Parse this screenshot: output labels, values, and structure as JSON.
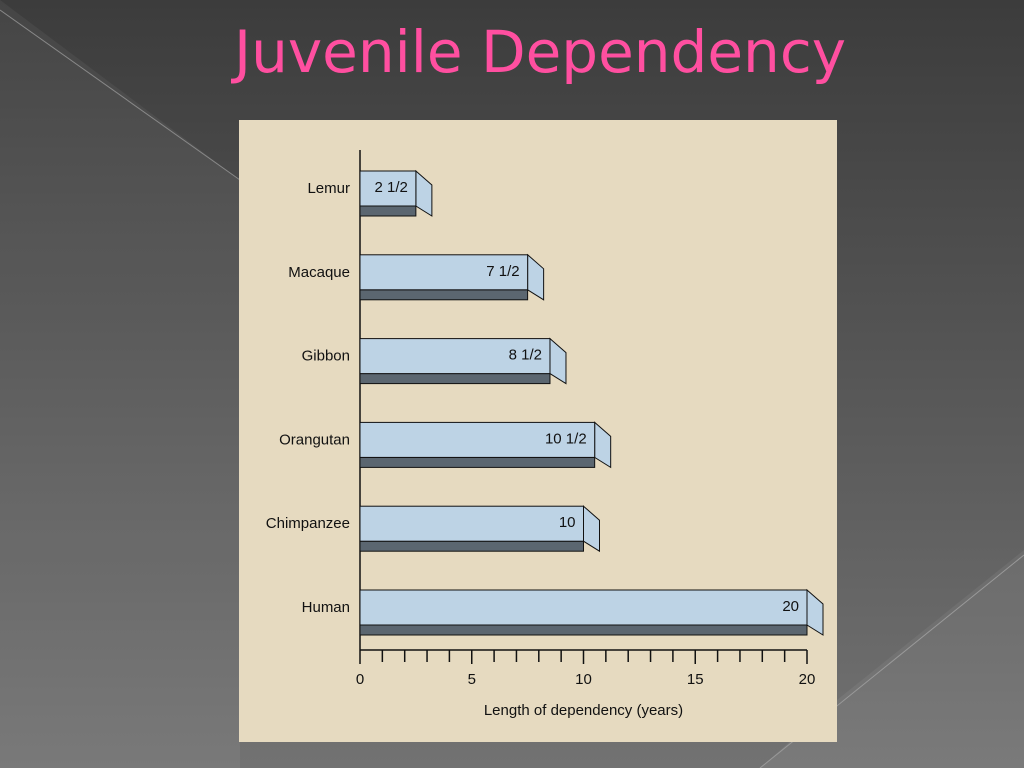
{
  "chart_data": {
    "type": "bar",
    "orientation": "horizontal",
    "title": "Juvenile Dependency",
    "categories": [
      "Lemur",
      "Macaque",
      "Gibbon",
      "Orangutan",
      "Chimpanzee",
      "Human"
    ],
    "values": [
      2.5,
      7.5,
      8.5,
      10.5,
      10,
      20
    ],
    "value_labels": [
      "2 1/2",
      "7 1/2",
      "8 1/2",
      "10 1/2",
      "10",
      "20"
    ],
    "color": "#bdd3e5",
    "xlabel": "Length of dependency (years)",
    "xlim": [
      0,
      20
    ],
    "xticks": [
      0,
      5,
      10,
      15,
      20
    ],
    "xminorticks": [
      1,
      2,
      3,
      4,
      6,
      7,
      8,
      9,
      11,
      12,
      13,
      14,
      16,
      17,
      18,
      19
    ],
    "grid": false
  }
}
